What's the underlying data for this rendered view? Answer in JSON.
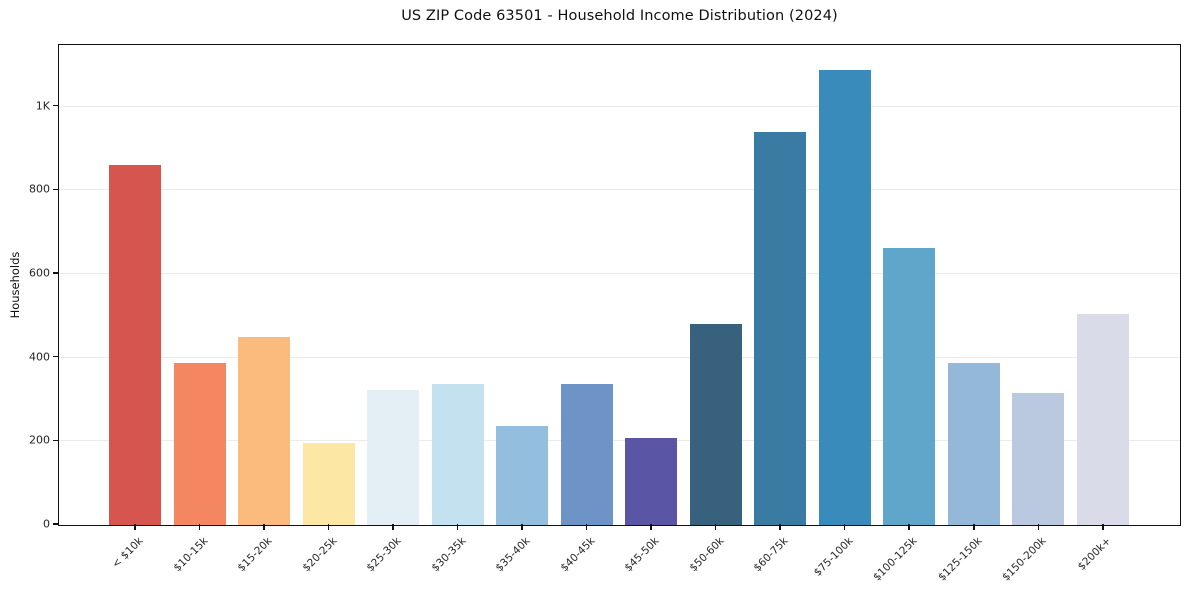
{
  "chart_data": {
    "type": "bar",
    "title": "US ZIP Code 63501 - Household Income Distribution (2024)",
    "xlabel": "",
    "ylabel": "Households",
    "categories": [
      "< $10k",
      "$10-15k",
      "$15-20k",
      "$20-25k",
      "$25-30k",
      "$30-35k",
      "$35-40k",
      "$40-45k",
      "$45-50k",
      "$50-60k",
      "$60-75k",
      "$75-100k",
      "$100-125k",
      "$125-150k",
      "$150-200k",
      "$200k+"
    ],
    "values": [
      860,
      388,
      450,
      197,
      323,
      337,
      236,
      337,
      207,
      480,
      940,
      1088,
      663,
      388,
      315,
      505
    ],
    "bar_colors": [
      "#d6554e",
      "#f48762",
      "#fbbb7c",
      "#fde7a5",
      "#e3eff5",
      "#c3e1ee",
      "#94bedd",
      "#6e93c6",
      "#5b55a6",
      "#37617c",
      "#397ba3",
      "#398bbc",
      "#60a5ca",
      "#94b9d8",
      "#bac9e0",
      "#dadbe9"
    ],
    "ylim": [
      0,
      1145
    ],
    "yticks": {
      "values": [
        0,
        200,
        400,
        600,
        800,
        1000
      ],
      "labels": [
        "0",
        "200",
        "400",
        "600",
        "800",
        "1K"
      ]
    },
    "x_tick_rotation": 45,
    "grid": "horizontal",
    "legend": "none",
    "frame": true,
    "colors": {
      "axis": "#111111",
      "grid": "#ebebeb",
      "text": "#262626",
      "background": "#ffffff"
    }
  }
}
